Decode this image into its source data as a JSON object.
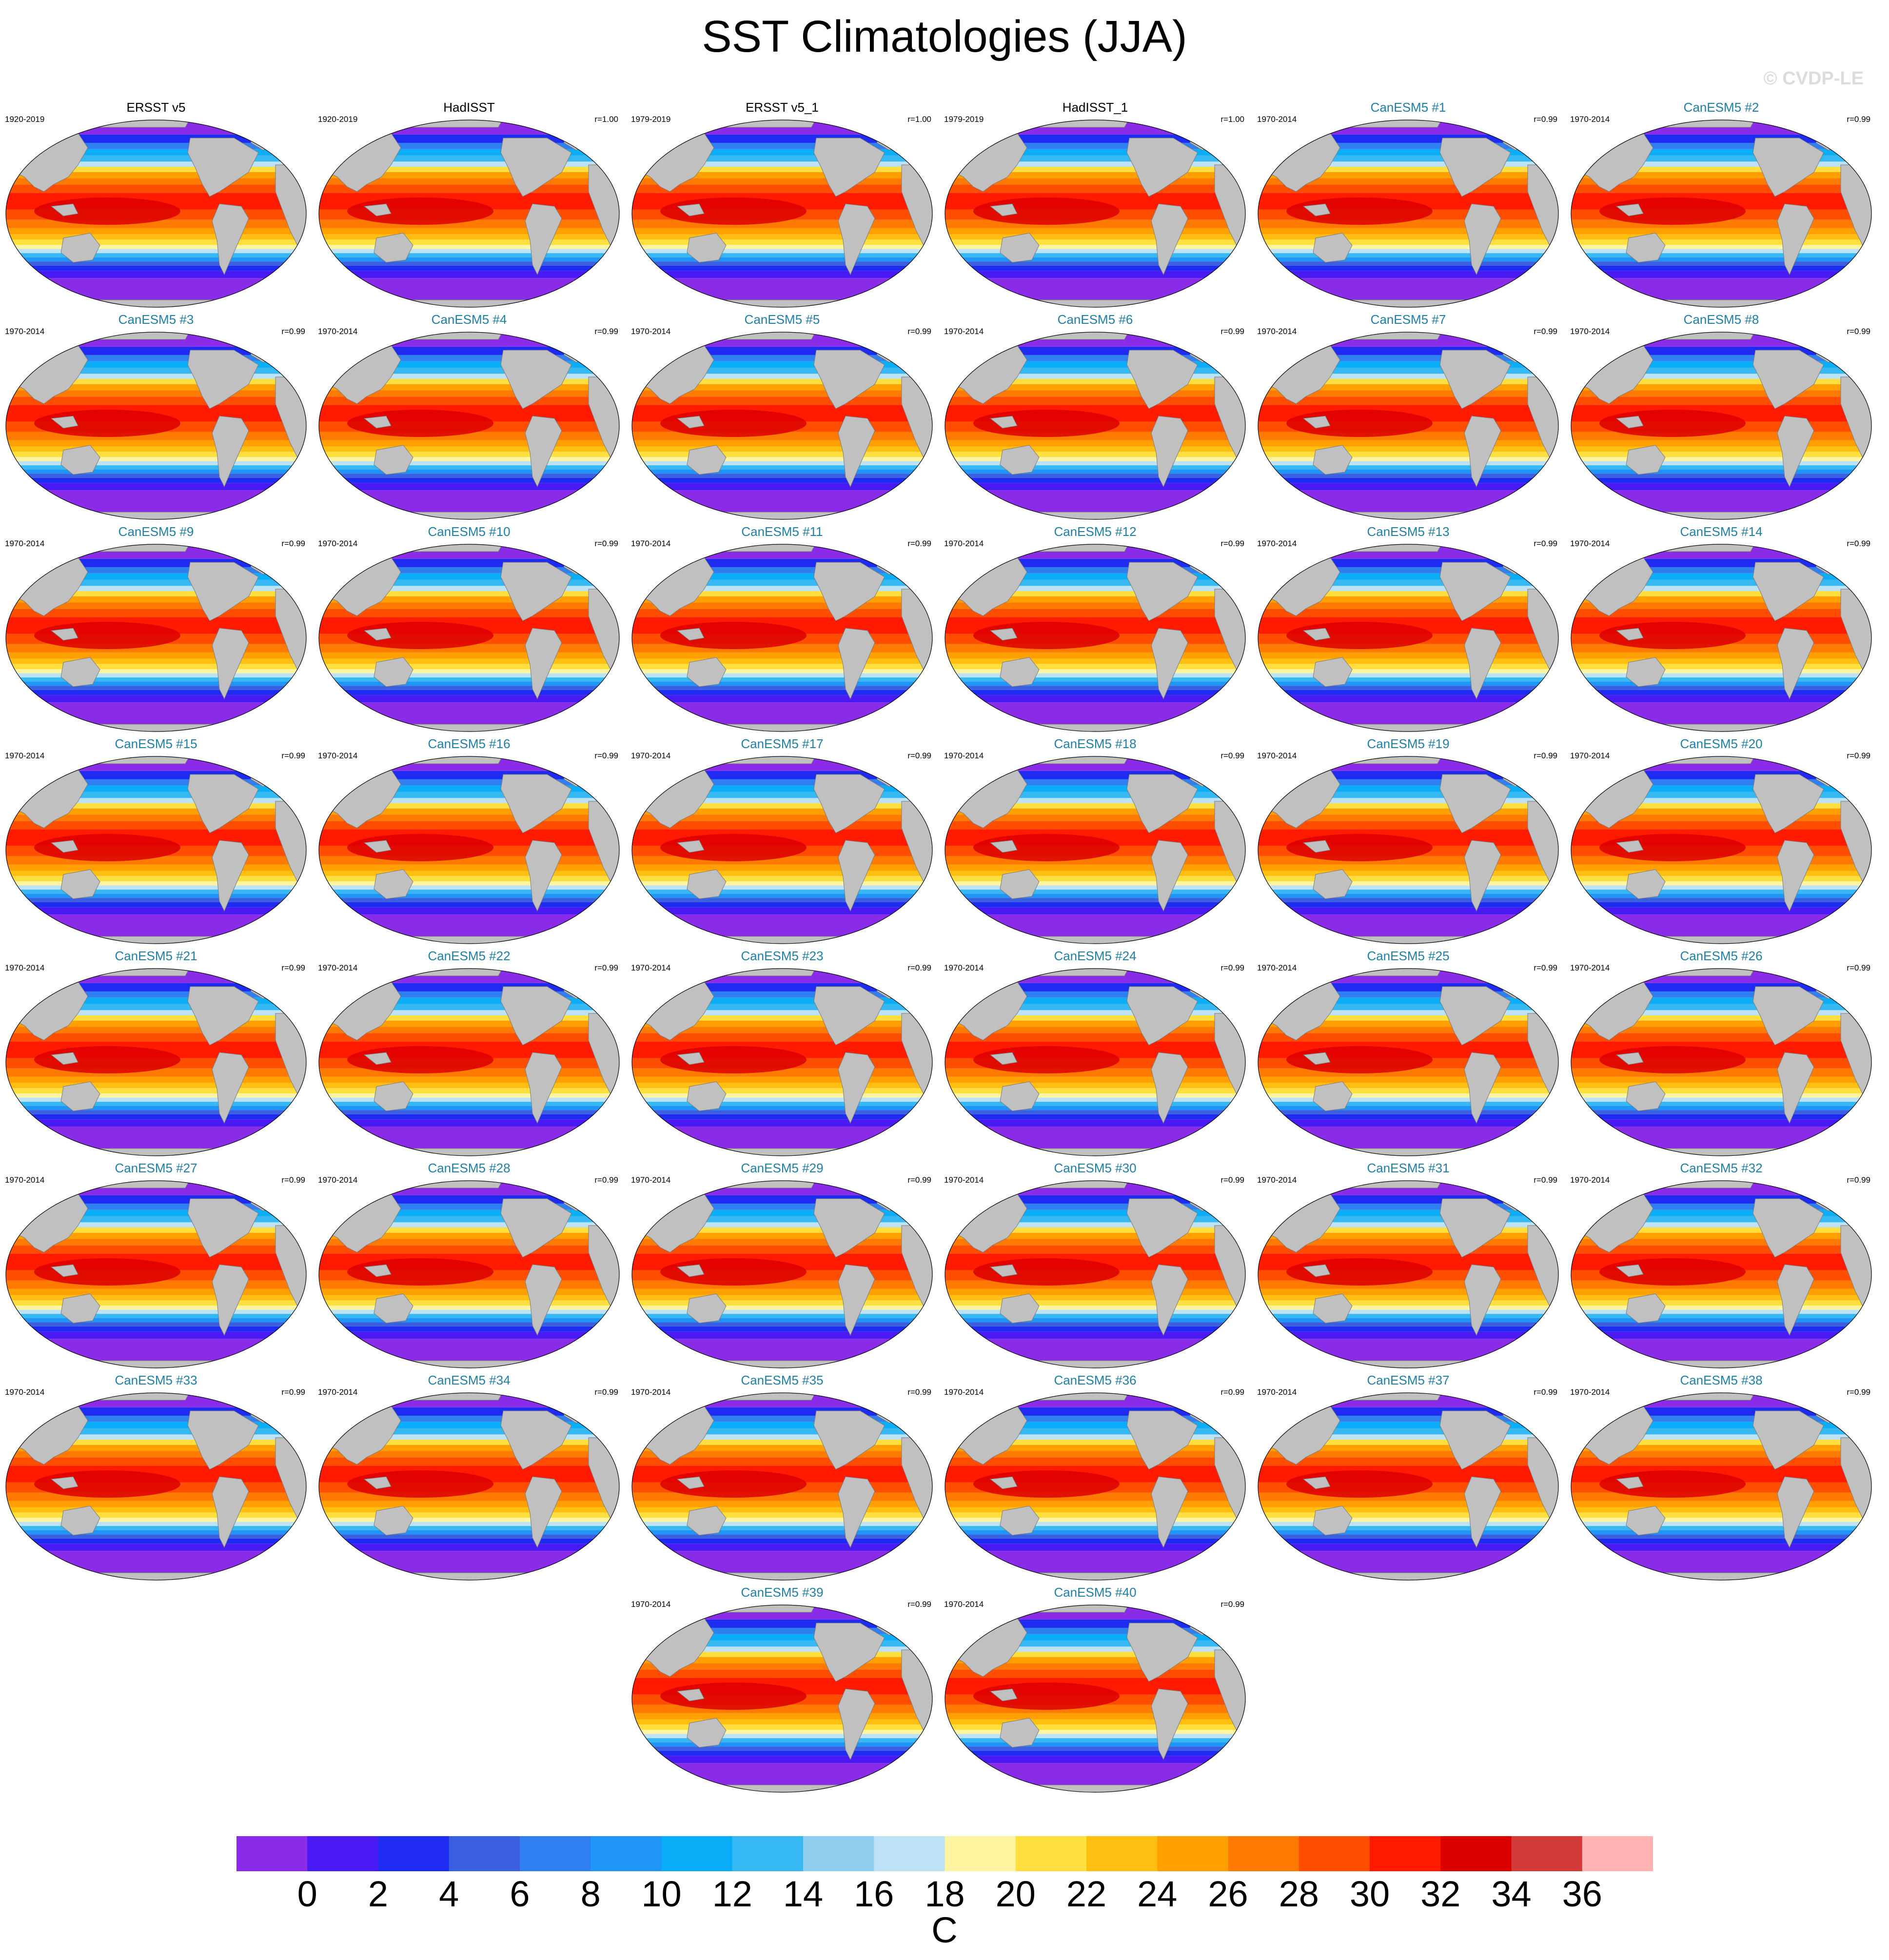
{
  "title": "SST Climatologies (JJA)",
  "watermark": "© CVDP-LE",
  "colorbar": {
    "unit": "C",
    "ticks": [
      "0",
      "2",
      "4",
      "6",
      "8",
      "10",
      "12",
      "14",
      "16",
      "18",
      "20",
      "22",
      "24",
      "26",
      "28",
      "30",
      "32",
      "34",
      "36"
    ],
    "colors": [
      "#8a2be8",
      "#4a1af5",
      "#1e2bf0",
      "#3a5fe0",
      "#2f7ff0",
      "#1f95f8",
      "#0aadf7",
      "#36b9f2",
      "#8fcdee",
      "#bde2f6",
      "#fff4a0",
      "#ffdf3e",
      "#ffbf10",
      "#ffa000",
      "#ff7a00",
      "#ff4e00",
      "#ff1a00",
      "#dd0000",
      "#d43a3a",
      "#ffb3b3"
    ]
  },
  "chart_data": {
    "type": "heatmap",
    "variable": "SST Climatologies (JJA)",
    "units": "C",
    "color_levels": [
      0,
      2,
      4,
      6,
      8,
      10,
      12,
      14,
      16,
      18,
      20,
      22,
      24,
      26,
      28,
      30,
      32,
      34,
      36
    ],
    "panels": [
      {
        "title": "ERSST v5",
        "years": "1920-2019",
        "r": ""
      },
      {
        "title": "HadISST",
        "years": "1920-2019",
        "r": "r=1.00"
      },
      {
        "title": "ERSST v5_1",
        "years": "1979-2019",
        "r": "r=1.00"
      },
      {
        "title": "HadISST_1",
        "years": "1979-2019",
        "r": "r=1.00"
      },
      {
        "title": "CanESM5 #1",
        "years": "1970-2014",
        "r": "r=0.99"
      },
      {
        "title": "CanESM5 #2",
        "years": "1970-2014",
        "r": "r=0.99"
      },
      {
        "title": "CanESM5 #3",
        "years": "1970-2014",
        "r": "r=0.99"
      },
      {
        "title": "CanESM5 #4",
        "years": "1970-2014",
        "r": "r=0.99"
      },
      {
        "title": "CanESM5 #5",
        "years": "1970-2014",
        "r": "r=0.99"
      },
      {
        "title": "CanESM5 #6",
        "years": "1970-2014",
        "r": "r=0.99"
      },
      {
        "title": "CanESM5 #7",
        "years": "1970-2014",
        "r": "r=0.99"
      },
      {
        "title": "CanESM5 #8",
        "years": "1970-2014",
        "r": "r=0.99"
      },
      {
        "title": "CanESM5 #9",
        "years": "1970-2014",
        "r": "r=0.99"
      },
      {
        "title": "CanESM5 #10",
        "years": "1970-2014",
        "r": "r=0.99"
      },
      {
        "title": "CanESM5 #11",
        "years": "1970-2014",
        "r": "r=0.99"
      },
      {
        "title": "CanESM5 #12",
        "years": "1970-2014",
        "r": "r=0.99"
      },
      {
        "title": "CanESM5 #13",
        "years": "1970-2014",
        "r": "r=0.99"
      },
      {
        "title": "CanESM5 #14",
        "years": "1970-2014",
        "r": "r=0.99"
      },
      {
        "title": "CanESM5 #15",
        "years": "1970-2014",
        "r": "r=0.99"
      },
      {
        "title": "CanESM5 #16",
        "years": "1970-2014",
        "r": "r=0.99"
      },
      {
        "title": "CanESM5 #17",
        "years": "1970-2014",
        "r": "r=0.99"
      },
      {
        "title": "CanESM5 #18",
        "years": "1970-2014",
        "r": "r=0.99"
      },
      {
        "title": "CanESM5 #19",
        "years": "1970-2014",
        "r": "r=0.99"
      },
      {
        "title": "CanESM5 #20",
        "years": "1970-2014",
        "r": "r=0.99"
      },
      {
        "title": "CanESM5 #21",
        "years": "1970-2014",
        "r": "r=0.99"
      },
      {
        "title": "CanESM5 #22",
        "years": "1970-2014",
        "r": "r=0.99"
      },
      {
        "title": "CanESM5 #23",
        "years": "1970-2014",
        "r": "r=0.99"
      },
      {
        "title": "CanESM5 #24",
        "years": "1970-2014",
        "r": "r=0.99"
      },
      {
        "title": "CanESM5 #25",
        "years": "1970-2014",
        "r": "r=0.99"
      },
      {
        "title": "CanESM5 #26",
        "years": "1970-2014",
        "r": "r=0.99"
      },
      {
        "title": "CanESM5 #27",
        "years": "1970-2014",
        "r": "r=0.99"
      },
      {
        "title": "CanESM5 #28",
        "years": "1970-2014",
        "r": "r=0.99"
      },
      {
        "title": "CanESM5 #29",
        "years": "1970-2014",
        "r": "r=0.99"
      },
      {
        "title": "CanESM5 #30",
        "years": "1970-2014",
        "r": "r=0.99"
      },
      {
        "title": "CanESM5 #31",
        "years": "1970-2014",
        "r": "r=0.99"
      },
      {
        "title": "CanESM5 #32",
        "years": "1970-2014",
        "r": "r=0.99"
      },
      {
        "title": "CanESM5 #33",
        "years": "1970-2014",
        "r": "r=0.99"
      },
      {
        "title": "CanESM5 #34",
        "years": "1970-2014",
        "r": "r=0.99"
      },
      {
        "title": "CanESM5 #35",
        "years": "1970-2014",
        "r": "r=0.99"
      },
      {
        "title": "CanESM5 #36",
        "years": "1970-2014",
        "r": "r=0.99"
      },
      {
        "title": "CanESM5 #37",
        "years": "1970-2014",
        "r": "r=0.99"
      },
      {
        "title": "CanESM5 #38",
        "years": "1970-2014",
        "r": "r=0.99"
      },
      {
        "title": "CanESM5 #39",
        "years": "1970-2014",
        "r": "r=0.99"
      },
      {
        "title": "CanESM5 #40",
        "years": "1970-2014",
        "r": "r=0.99"
      }
    ]
  }
}
